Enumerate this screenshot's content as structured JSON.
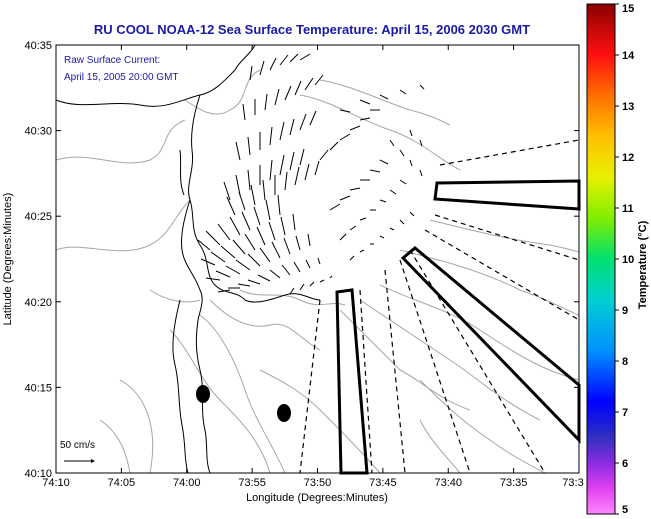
{
  "title": "RU COOL  NOAA-12  Sea Surface Temperature:  April 15, 2006 2030 GMT",
  "legend": {
    "line1": "Raw Surface Current:",
    "line2": "April 15, 2005 20:00 GMT"
  },
  "scale_label": "50 cm/s",
  "xlabel": "Longitude (Degrees:Minutes)",
  "ylabel": "Latitude (Degrees:Minutes)",
  "x_ticks": [
    "74:10",
    "74:05",
    "74:00",
    "73:55",
    "73:50",
    "73:45",
    "73:40",
    "73:35",
    "73:3"
  ],
  "y_ticks": [
    "40:35",
    "40:30",
    "40:25",
    "40:20",
    "40:15",
    "40:10"
  ],
  "colorbar": {
    "label": "Temperature (°C)",
    "ticks": [
      "15",
      "14",
      "13",
      "12",
      "11",
      "10",
      "9",
      "8",
      "7",
      "6",
      "5"
    ],
    "range": [
      5,
      15
    ]
  },
  "colors": {
    "title": "#1a1aa8",
    "legend_text": "#1a1aa8",
    "axis": "#000000",
    "contour": "#a6a6a6"
  }
}
